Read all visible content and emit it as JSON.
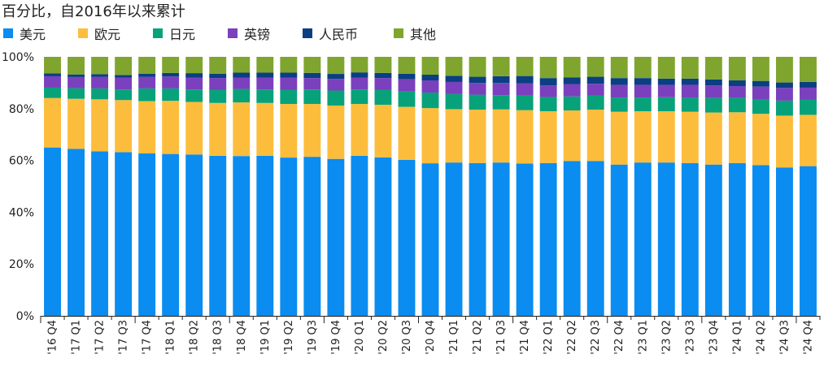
{
  "chart_data": {
    "type": "bar",
    "stacked": true,
    "title": "百分比，自2016年以来累计",
    "ylim": [
      0,
      100
    ],
    "yticks": [
      "0%",
      "20%",
      "40%",
      "60%",
      "80%",
      "100%"
    ],
    "grid": false,
    "legend_position": "top-left",
    "categories": [
      "'16 Q4",
      "'17 Q1",
      "'17 Q2",
      "'17 Q3",
      "'17 Q4",
      "'18 Q1",
      "'18 Q2",
      "'18 Q3",
      "'18 Q4",
      "'19 Q1",
      "'19 Q2",
      "'19 Q3",
      "'19 Q4",
      "'20 Q1",
      "'20 Q2",
      "'20 Q3",
      "'20 Q4",
      "'21 Q1",
      "'21 Q2",
      "'21 Q3",
      "'21 Q4",
      "'22 Q1",
      "'22 Q2",
      "'22 Q3",
      "'22 Q4",
      "'23 Q1",
      "'23 Q2",
      "'23 Q3",
      "'23 Q4",
      "'24 Q1",
      "'24 Q2",
      "'24 Q3",
      "'24 Q4"
    ],
    "series": [
      {
        "name": "美元",
        "color": "#0a8cf0",
        "values": [
          65.0,
          64.5,
          63.5,
          63.2,
          62.7,
          62.5,
          62.3,
          61.8,
          61.7,
          61.8,
          61.1,
          61.4,
          60.6,
          61.8,
          61.2,
          60.2,
          58.9,
          59.2,
          59.0,
          59.2,
          58.8,
          59.0,
          59.8,
          59.8,
          58.4,
          59.2,
          59.2,
          59.0,
          58.4,
          59.0,
          58.2,
          57.3,
          57.8
        ]
      },
      {
        "name": "欧元",
        "color": "#fdbd3c",
        "values": [
          19.1,
          19.3,
          20.1,
          20.1,
          20.2,
          20.5,
          20.3,
          20.4,
          20.7,
          20.4,
          20.7,
          20.4,
          20.6,
          20.0,
          20.3,
          20.5,
          21.3,
          20.6,
          20.6,
          20.5,
          20.6,
          20.0,
          19.5,
          19.8,
          20.4,
          19.8,
          19.8,
          19.8,
          20.1,
          19.6,
          19.8,
          20.0,
          19.8
        ]
      },
      {
        "name": "日元",
        "color": "#08a27a",
        "values": [
          4.0,
          4.1,
          4.2,
          4.1,
          4.9,
          4.8,
          4.8,
          5.1,
          5.2,
          5.2,
          5.5,
          5.6,
          5.8,
          5.6,
          5.8,
          6.0,
          6.0,
          5.8,
          5.8,
          5.5,
          5.6,
          5.5,
          5.4,
          5.5,
          5.5,
          5.3,
          5.4,
          5.4,
          5.6,
          5.6,
          5.7,
          5.8,
          5.8
        ]
      },
      {
        "name": "英镑",
        "color": "#7b40bd",
        "values": [
          4.4,
          4.3,
          4.5,
          4.5,
          4.5,
          4.6,
          4.5,
          4.5,
          4.4,
          4.5,
          4.6,
          4.4,
          4.5,
          4.6,
          4.5,
          4.7,
          4.7,
          4.7,
          4.5,
          4.7,
          4.8,
          4.5,
          4.8,
          4.5,
          4.9,
          4.9,
          4.8,
          5.0,
          4.9,
          4.5,
          4.8,
          4.9,
          4.7
        ]
      },
      {
        "name": "人民币",
        "color": "#0a3f82",
        "values": [
          1.1,
          1.0,
          1.0,
          1.1,
          1.2,
          1.4,
          1.8,
          1.7,
          1.9,
          2.0,
          2.0,
          2.0,
          1.9,
          2.0,
          2.0,
          2.1,
          2.2,
          2.4,
          2.4,
          2.6,
          2.8,
          2.8,
          2.6,
          2.7,
          2.6,
          2.6,
          2.4,
          2.4,
          2.3,
          2.2,
          2.2,
          2.1,
          2.2
        ]
      },
      {
        "name": "其他",
        "color": "#7fa52f",
        "values": [
          6.4,
          6.8,
          6.7,
          7.0,
          6.5,
          6.2,
          6.3,
          6.5,
          6.1,
          6.1,
          6.1,
          6.2,
          6.6,
          6.0,
          6.2,
          6.5,
          6.9,
          7.3,
          7.7,
          7.5,
          7.4,
          8.2,
          7.9,
          7.7,
          8.2,
          8.2,
          8.4,
          8.4,
          8.7,
          9.1,
          9.3,
          9.9,
          9.7
        ]
      }
    ]
  }
}
